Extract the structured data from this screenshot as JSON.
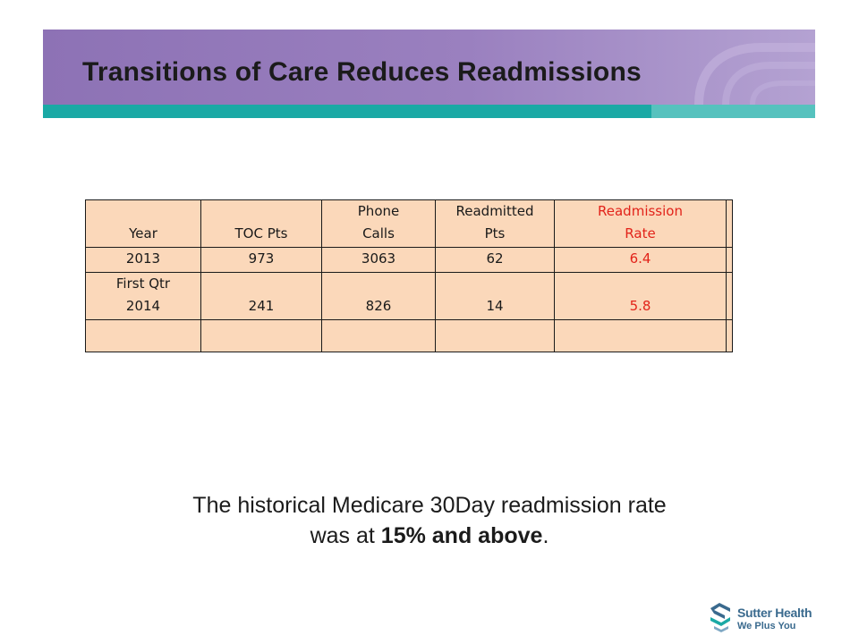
{
  "title": "Transitions of Care Reduces Readmissions",
  "table": {
    "headers": [
      [
        "Year"
      ],
      [
        "TOC Pts"
      ],
      [
        "Phone",
        "Calls"
      ],
      [
        "Readmitted",
        "Pts"
      ],
      [
        "Readmission",
        "Rate"
      ]
    ],
    "rows": [
      {
        "year": [
          "2013"
        ],
        "toc_pts": "973",
        "phone_calls": "3063",
        "readmitted_pts": "62",
        "rate": "6.4"
      },
      {
        "year": [
          "First Qtr",
          "2014"
        ],
        "toc_pts": "241",
        "phone_calls": "826",
        "readmitted_pts": "14",
        "rate": "5.8"
      }
    ],
    "colors": {
      "fill": "#fbd8ba",
      "rate_highlight": "#e2231a"
    }
  },
  "caption": {
    "line1": "The historical Medicare 30Day readmission rate",
    "line2_prefix": "was at ",
    "line2_bold": "15% and above",
    "line2_suffix": "."
  },
  "logo": {
    "name": "Sutter Health",
    "tagline": "We Plus You"
  },
  "colors": {
    "banner": "#9a80bf",
    "strip": "#1aa9a5",
    "brand": "#3a6a8e"
  }
}
